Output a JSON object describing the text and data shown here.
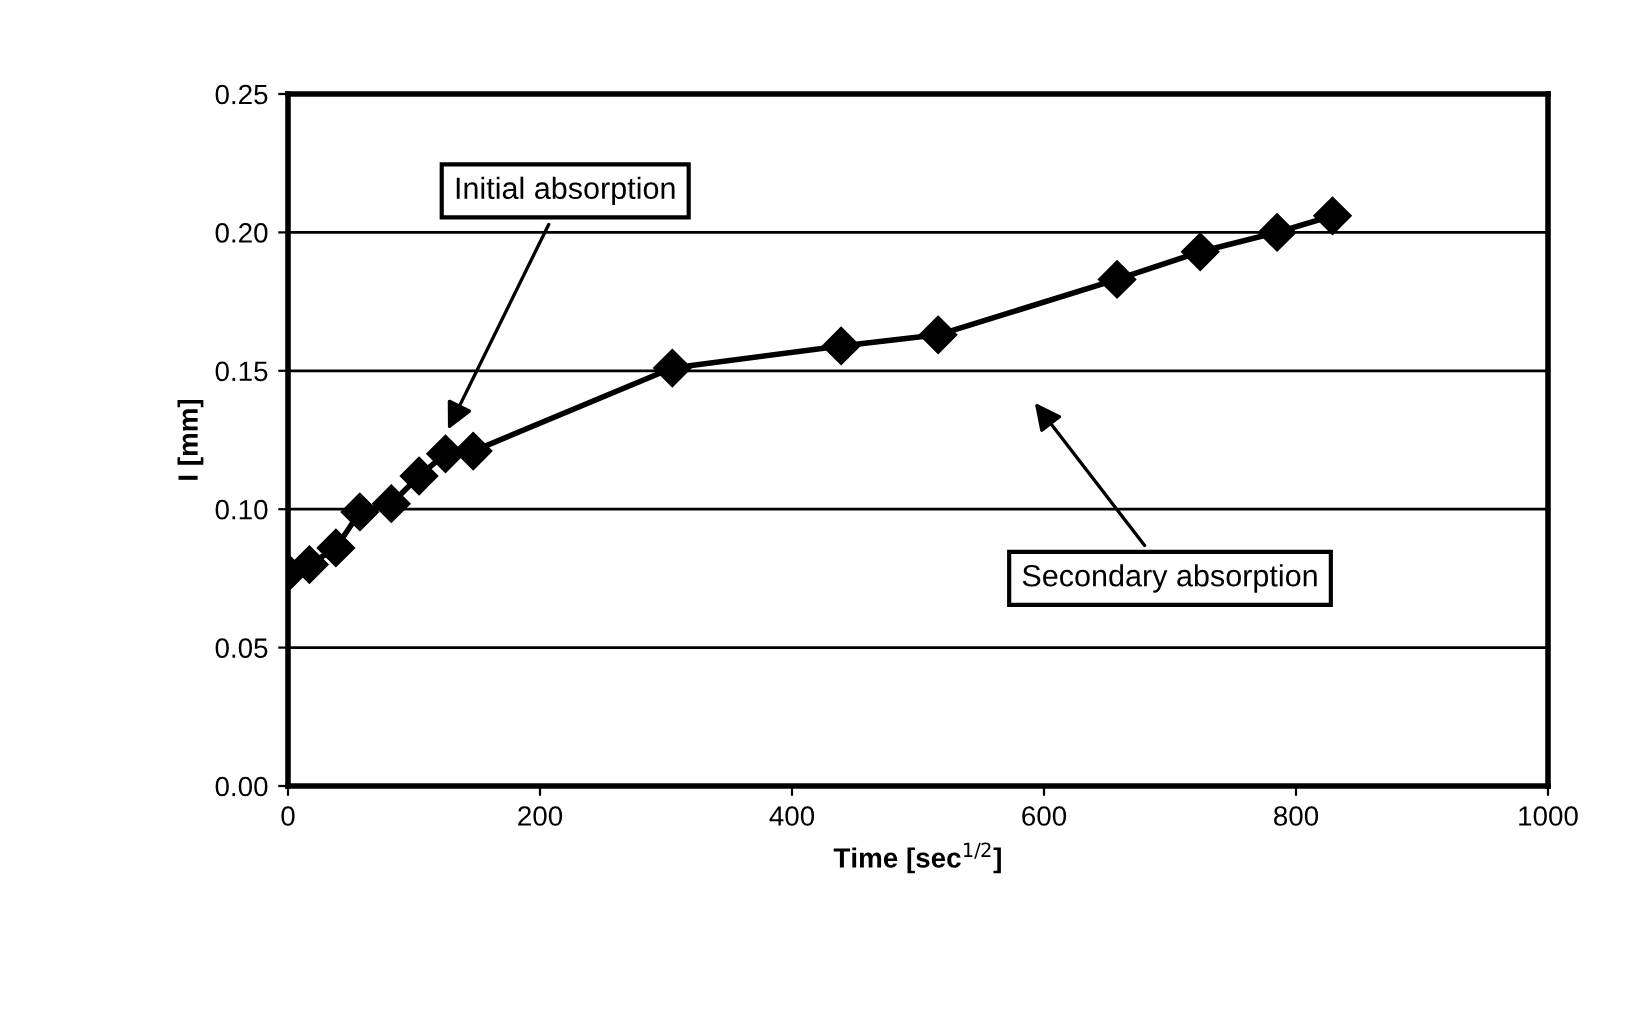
{
  "chart_data": {
    "type": "line",
    "xlabel": "Time [sec$^{1/2}$]",
    "ylabel": "I [mm]",
    "x": [
      0,
      17,
      38,
      57,
      82,
      104,
      125,
      147,
      305,
      439,
      516,
      658,
      724,
      785,
      829
    ],
    "series": [
      {
        "color": "#000000",
        "values": [
          0.077,
          0.08,
          0.086,
          0.099,
          0.102,
          0.112,
          0.12,
          0.121,
          0.151,
          0.159,
          0.163,
          0.183,
          0.193,
          0.2,
          0.206
        ]
      }
    ],
    "xlim": [
      0,
      1000
    ],
    "xticks": [
      0,
      200,
      400,
      600,
      800,
      1000
    ],
    "ylim": [
      0,
      0.25
    ],
    "yticks": [
      {
        "value": 0,
        "label": "0.00"
      },
      {
        "value": 0.05,
        "label": "0.05"
      },
      {
        "value": 0.1,
        "label": "0.10"
      },
      {
        "value": 0.15,
        "label": "0.15"
      },
      {
        "value": 0.2,
        "label": "0.20"
      },
      {
        "value": 0.25,
        "label": "0.25"
      }
    ],
    "grid": "y",
    "marker": "diamond",
    "line_style": "solid",
    "annotations": [
      {
        "text": "Initial absorption",
        "x": 125,
        "y": 0.127
      },
      "Secondary absorption"
    ]
  }
}
